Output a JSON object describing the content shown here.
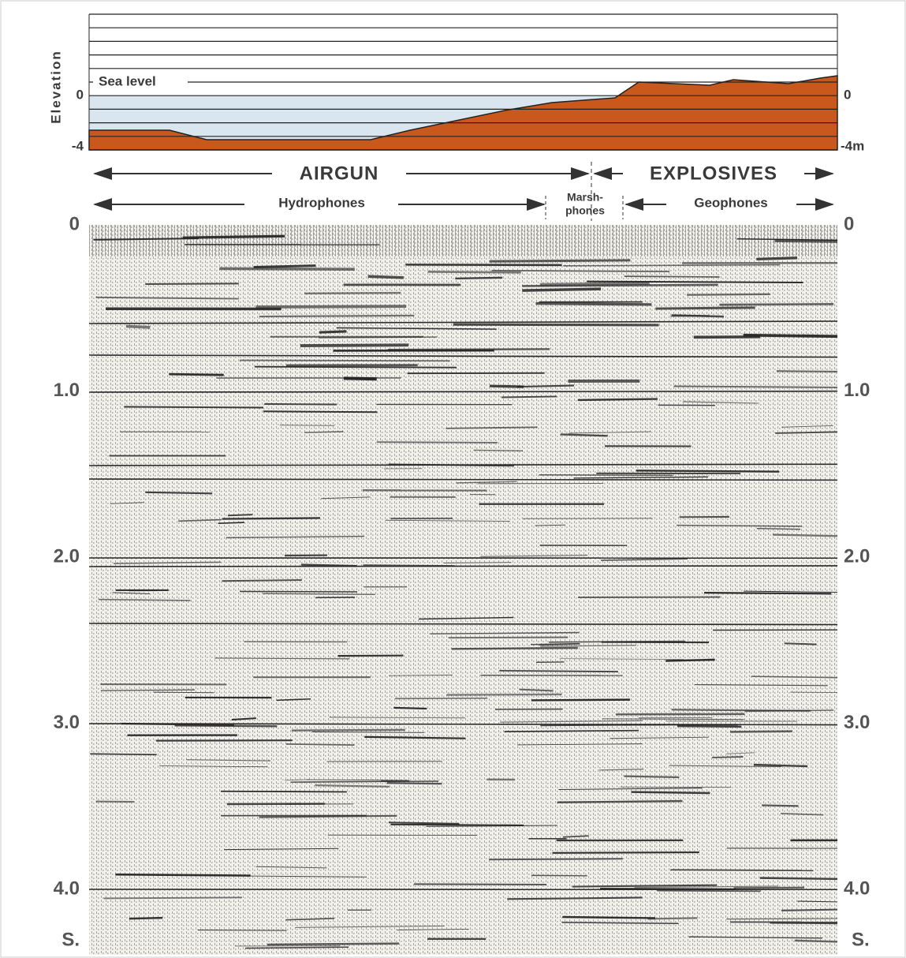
{
  "elevation_panel": {
    "axis_title": "Elevation",
    "sea_level": "Sea level",
    "left_ticks": [
      "0",
      "-4"
    ],
    "right_ticks": [
      "0",
      "-4m"
    ]
  },
  "sources": {
    "left": "AIRGUN",
    "right": "EXPLOSIVES"
  },
  "receivers": {
    "left": "Hydrophones",
    "middle": [
      "Marsh-",
      "phones"
    ],
    "right": "Geophones"
  },
  "time_axis": {
    "left_ticks": [
      "0",
      "1.0",
      "2.0",
      "3.0",
      "4.0"
    ],
    "right_ticks": [
      "0",
      "1.0",
      "2.0",
      "3.0",
      "4.0"
    ],
    "left_unit": "S.",
    "right_unit": "S."
  }
}
